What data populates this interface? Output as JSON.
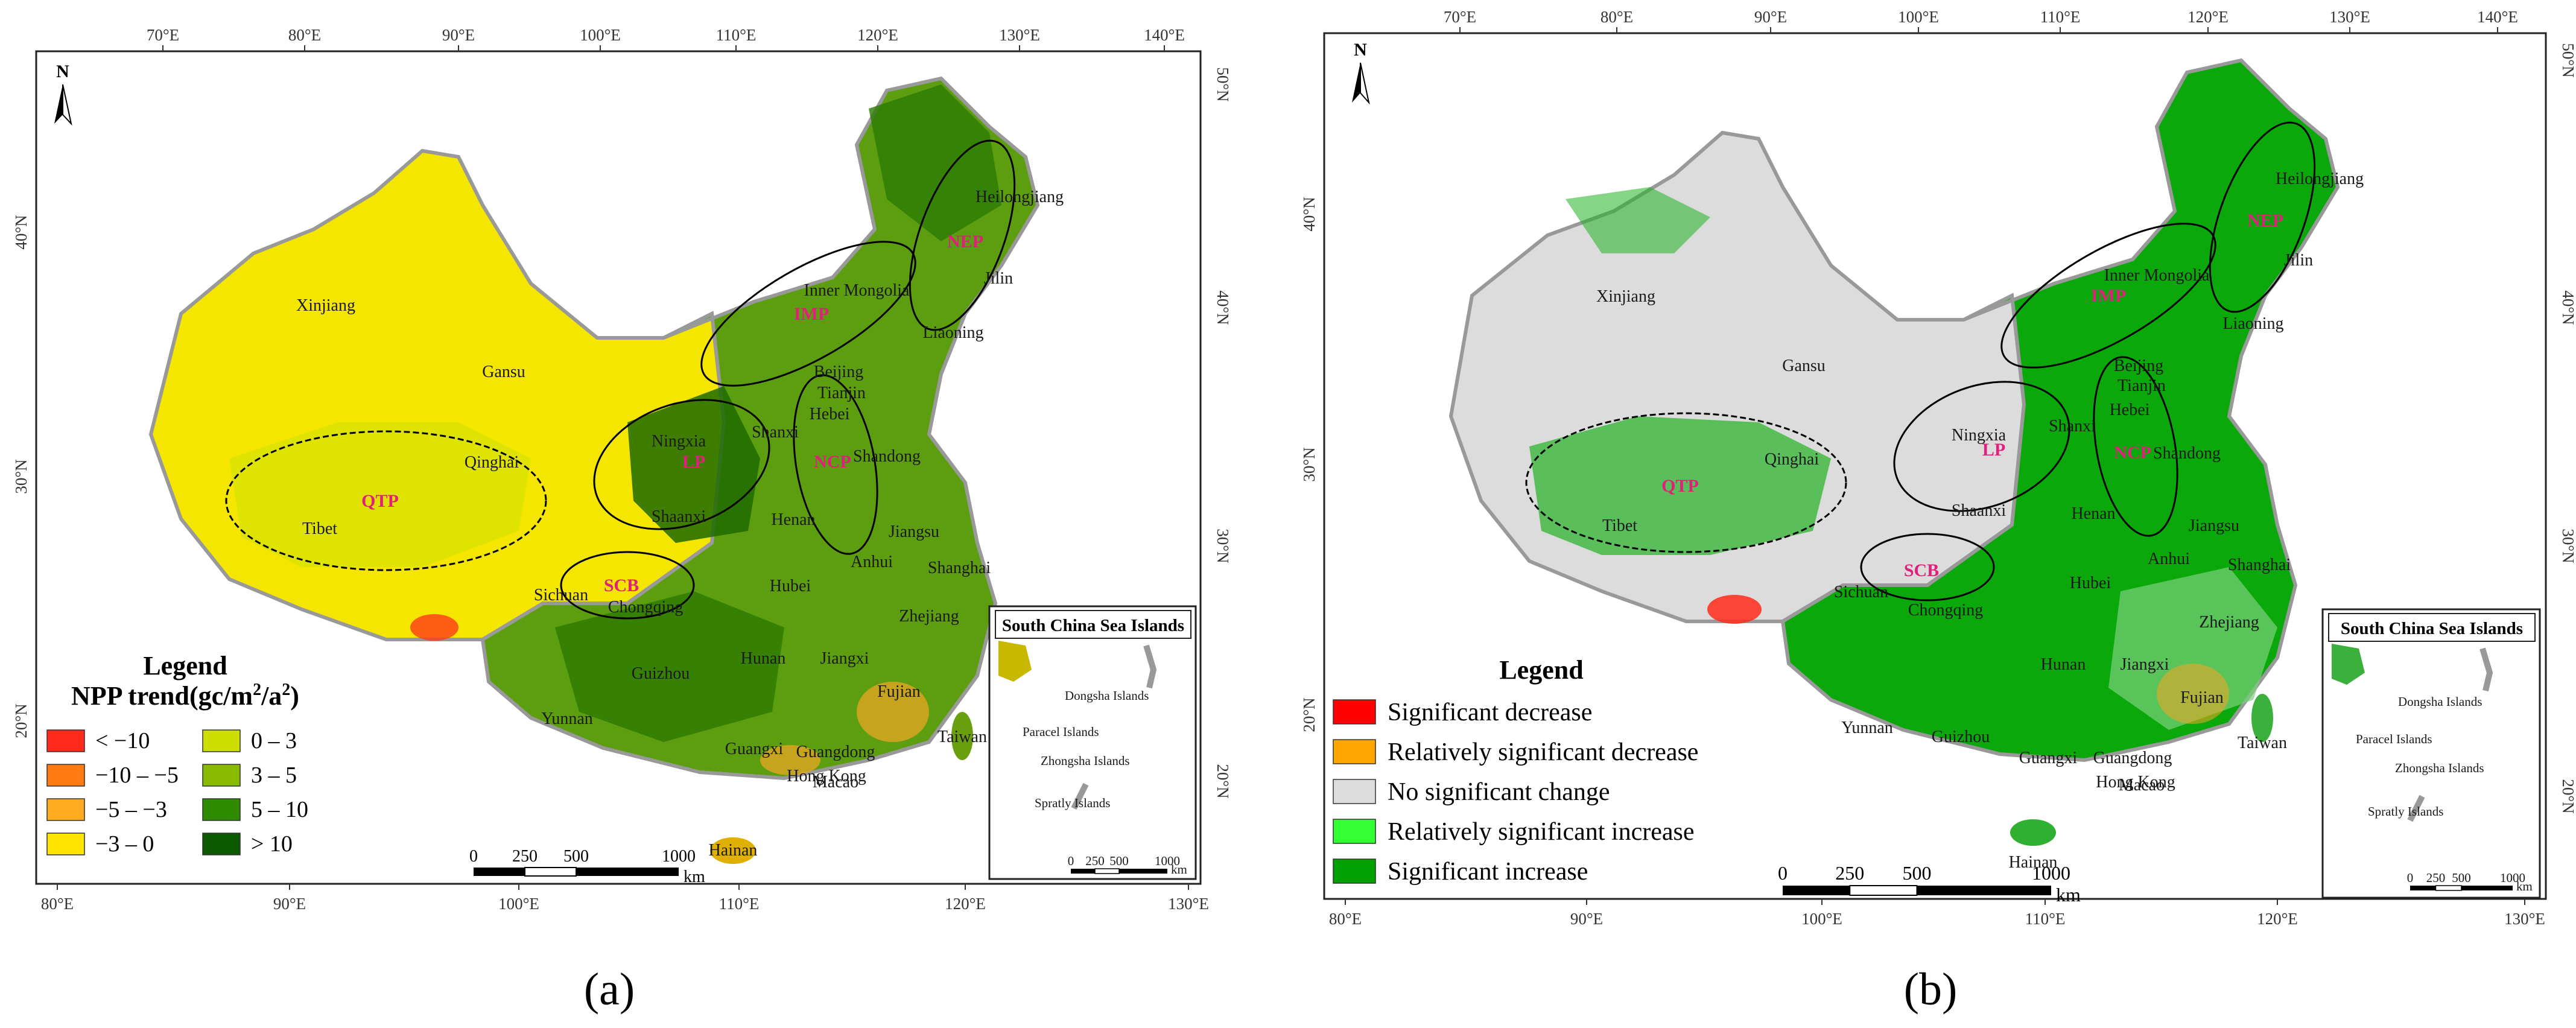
{
  "ticks": {
    "top_lon": [
      "70°E",
      "80°E",
      "90°E",
      "100°E",
      "110°E",
      "120°E",
      "130°E",
      "140°E"
    ],
    "bottom_lon": [
      "80°E",
      "90°E",
      "100°E",
      "110°E",
      "120°E",
      "130°E"
    ],
    "left_lat": [
      "40°N",
      "30°N",
      "20°N"
    ],
    "right_lat": [
      "50°N",
      "40°N",
      "30°N",
      "20°N"
    ]
  },
  "north_label": "N",
  "provinces": [
    "Xinjiang",
    "Tibet",
    "Qinghai",
    "Gansu",
    "Inner Mongolia",
    "Heilongjiang",
    "Jilin",
    "Liaoning",
    "Beijing",
    "Tianjin",
    "Hebei",
    "Shanxi",
    "Shandong",
    "Ningxia",
    "Shaanxi",
    "Henan",
    "Jiangsu",
    "Shanghai",
    "Anhui",
    "Hubei",
    "Sichuan",
    "Chongqing",
    "Zhejiang",
    "Hunan",
    "Jiangxi",
    "Fujian",
    "Guizhou",
    "Yunnan",
    "Guangxi",
    "Guangdong",
    "Hong Kong",
    "Macao",
    "Taiwan",
    "Hainan"
  ],
  "regions": [
    "QTP",
    "LP",
    "SCB",
    "IMP",
    "NEP",
    "NCP"
  ],
  "inset": {
    "title": "South China Sea Islands",
    "labels": [
      "Dongsha Islands",
      "Paracel Islands",
      "Zhongsha Islands",
      "Spratly Islands"
    ],
    "scale": [
      "0",
      "250",
      "500",
      "1000",
      "km"
    ]
  },
  "scalebar": [
    "0",
    "250",
    "500",
    "1000",
    "km"
  ],
  "panel_a": {
    "caption": "(a)",
    "legend_title": "Legend",
    "legend_subtitle_main": "NPP trend(gc/m",
    "legend_subtitle_sup1": "2",
    "legend_subtitle_mid": "/a",
    "legend_subtitle_sup2": "2",
    "legend_subtitle_end": ")",
    "legend_items": [
      {
        "label": "< −10",
        "color": "#ff2a1a"
      },
      {
        "label": "−10 – −5",
        "color": "#ff7a10"
      },
      {
        "label": "−5 – −3",
        "color": "#ffab1f"
      },
      {
        "label": "−3 – 0",
        "color": "#ffe600"
      },
      {
        "label": "0 – 3",
        "color": "#ccdd00"
      },
      {
        "label": "3 – 5",
        "color": "#88bb00"
      },
      {
        "label": "5 – 10",
        "color": "#2e8b00"
      },
      {
        "label": "> 10",
        "color": "#0b5a00"
      }
    ]
  },
  "panel_b": {
    "caption": "(b)",
    "legend_title": "Legend",
    "legend_items": [
      {
        "label": "Significant decrease",
        "color": "#ff0000"
      },
      {
        "label": "Relatively significant decrease",
        "color": "#ffa500"
      },
      {
        "label": "No significant change",
        "color": "#dcdcdc"
      },
      {
        "label": "Relatively significant increase",
        "color": "#33ff33"
      },
      {
        "label": "Significant increase",
        "color": "#00a000"
      }
    ]
  }
}
